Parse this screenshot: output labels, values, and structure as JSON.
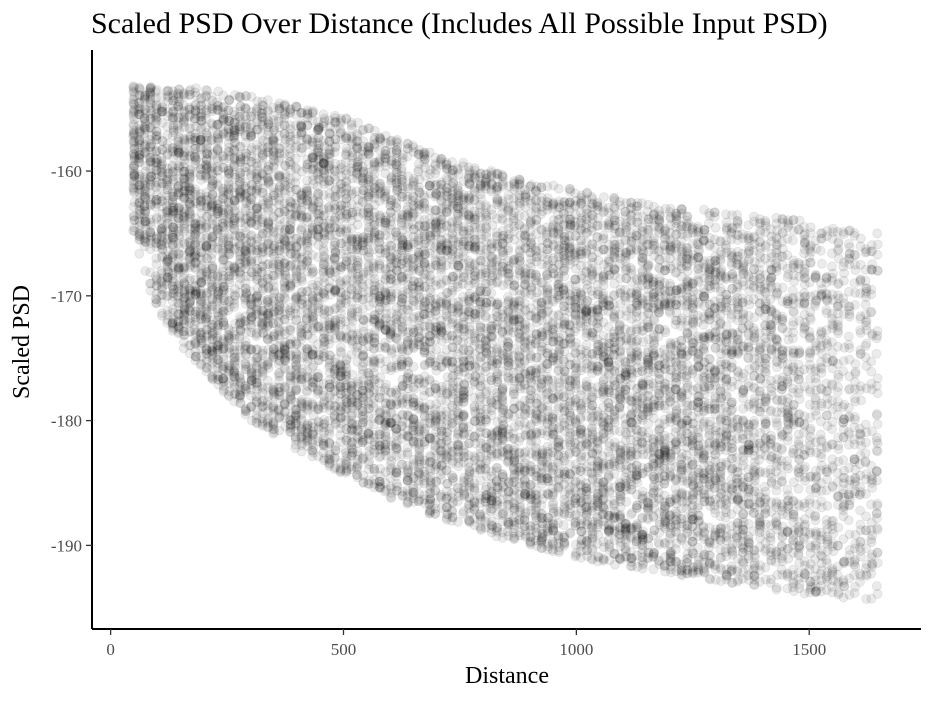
{
  "chart_data": {
    "type": "scatter",
    "title": "Scaled PSD Over Distance (Includes All Possible Input PSD)",
    "xlabel": "Distance",
    "ylabel": "Scaled PSD",
    "xlim": [
      -40,
      1740
    ],
    "ylim": [
      -196.7,
      -150.3
    ],
    "x_ticks": [
      0,
      500,
      1000,
      1500
    ],
    "y_ticks": [
      -160,
      -170,
      -180,
      -190
    ],
    "x_tick_labels": [
      "0",
      "500",
      "1000",
      "1500"
    ],
    "y_tick_labels": [
      "-160",
      "-170",
      "-180",
      "-190"
    ],
    "grid": false,
    "point_color": "#000000",
    "point_alpha": 0.08,
    "x_range": [
      50,
      1650
    ],
    "upper_envelope": [
      [
        50,
        -153.2
      ],
      [
        100,
        -153.2
      ],
      [
        200,
        -153.4
      ],
      [
        300,
        -154.0
      ],
      [
        400,
        -154.8
      ],
      [
        500,
        -155.6
      ],
      [
        600,
        -157.3
      ],
      [
        700,
        -158.6
      ],
      [
        800,
        -159.8
      ],
      [
        900,
        -160.8
      ],
      [
        1000,
        -161.5
      ],
      [
        1100,
        -162.3
      ],
      [
        1200,
        -162.8
      ],
      [
        1300,
        -163.2
      ],
      [
        1400,
        -163.6
      ],
      [
        1500,
        -164.0
      ],
      [
        1600,
        -164.5
      ],
      [
        1650,
        -165.0
      ]
    ],
    "lower_envelope": [
      [
        50,
        -165.0
      ],
      [
        70,
        -168.0
      ],
      [
        100,
        -171.0
      ],
      [
        150,
        -174.0
      ],
      [
        200,
        -176.0
      ],
      [
        300,
        -180.0
      ],
      [
        400,
        -182.4
      ],
      [
        500,
        -184.3
      ],
      [
        600,
        -186.2
      ],
      [
        700,
        -187.7
      ],
      [
        800,
        -189.0
      ],
      [
        900,
        -190.0
      ],
      [
        1000,
        -191.0
      ],
      [
        1100,
        -191.7
      ],
      [
        1200,
        -192.3
      ],
      [
        1300,
        -192.9
      ],
      [
        1400,
        -193.4
      ],
      [
        1500,
        -193.9
      ],
      [
        1600,
        -194.3
      ],
      [
        1650,
        -194.5
      ]
    ]
  }
}
